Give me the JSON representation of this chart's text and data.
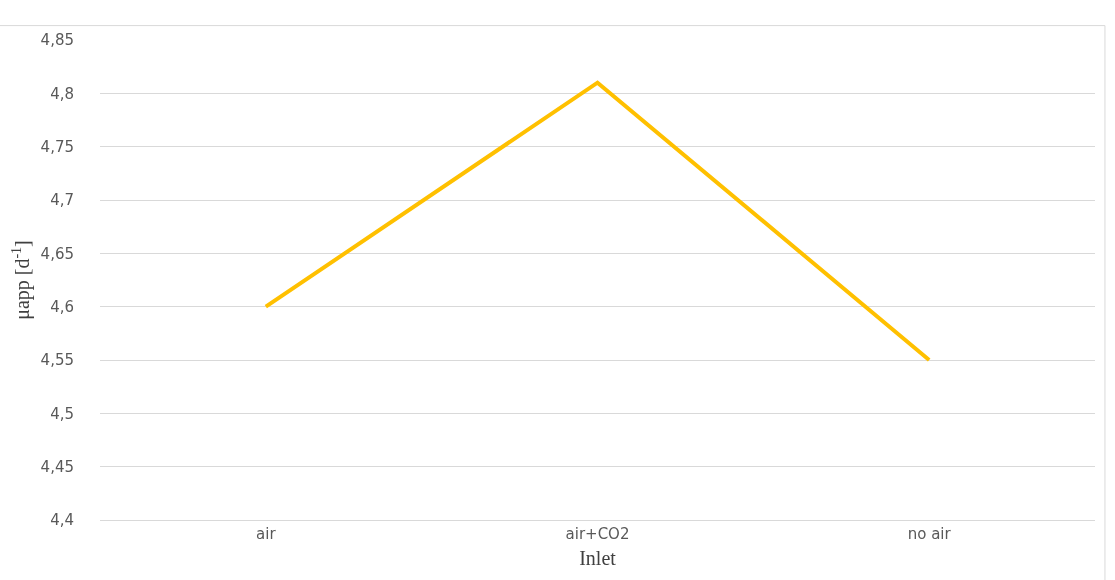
{
  "chart_data": {
    "type": "line",
    "xlabel": "Inlet",
    "ylabel": "μapp [d$^{-1}$]",
    "categories": [
      "air",
      "air+CO2",
      "no air"
    ],
    "series": [
      {
        "color": "#ffc000",
        "values": [
          4.6,
          4.81,
          4.55
        ]
      }
    ],
    "ylim": [
      4.4,
      4.85
    ],
    "yticks": [
      {
        "value": 4.4,
        "label": "4,4"
      },
      {
        "value": 4.45,
        "label": "4,45"
      },
      {
        "value": 4.5,
        "label": "4,5"
      },
      {
        "value": 4.55,
        "label": "4,55"
      },
      {
        "value": 4.6,
        "label": "4,6"
      },
      {
        "value": 4.65,
        "label": "4,65"
      },
      {
        "value": 4.7,
        "label": "4,7"
      },
      {
        "value": 4.75,
        "label": "4,75"
      },
      {
        "value": 4.8,
        "label": "4,8"
      },
      {
        "value": 4.85,
        "label": "4,85"
      }
    ],
    "grid": "y",
    "marker": "none",
    "line_style": "solid"
  }
}
